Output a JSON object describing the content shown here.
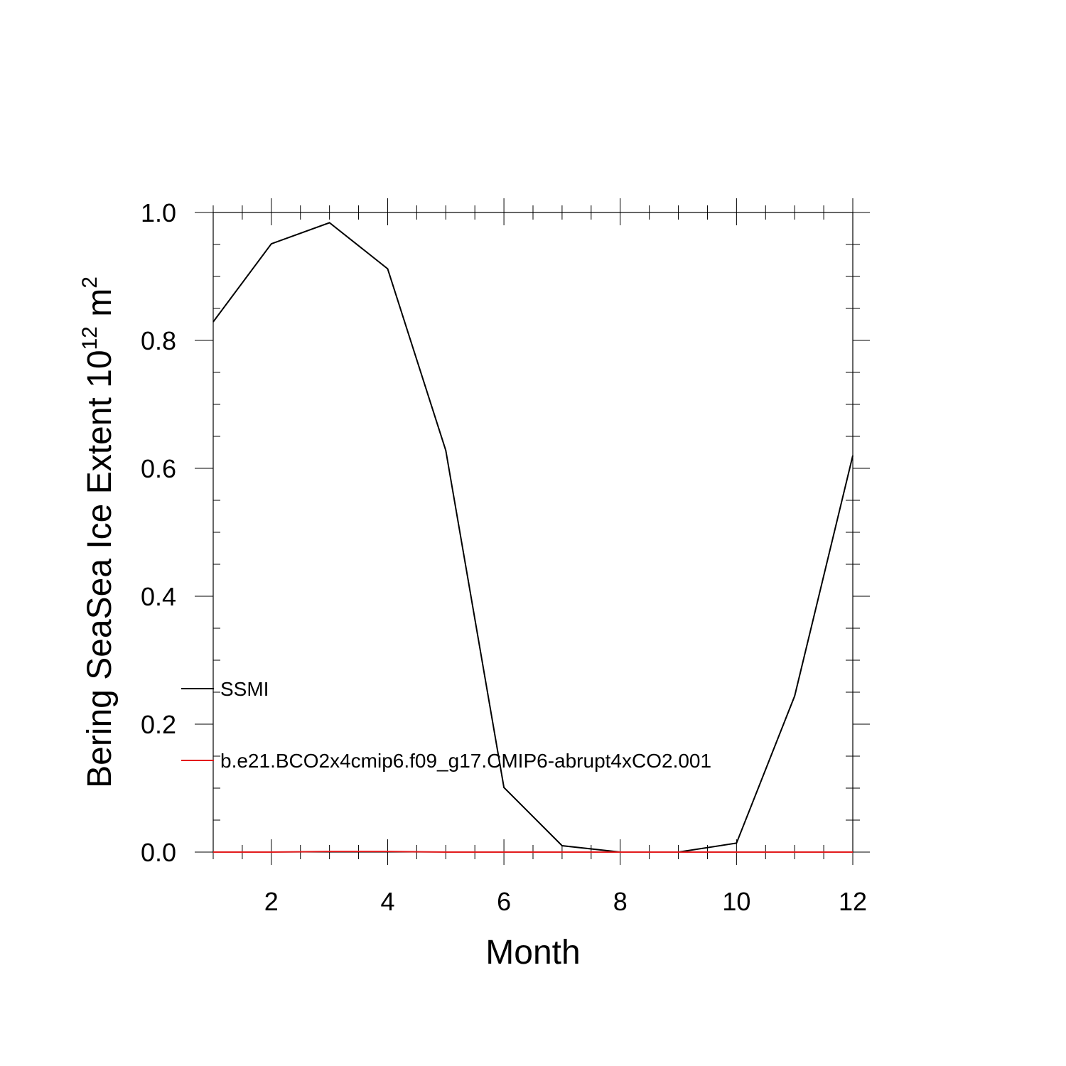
{
  "chart_data": {
    "type": "line",
    "title": "",
    "xlabel": "Month",
    "ylabel": {
      "text": "Bering SeaSea Ice Extent 10",
      "superscript": "12",
      "unit": " m",
      "unit_superscript": "2"
    },
    "xlim": [
      1,
      12
    ],
    "ylim": [
      0.0,
      1.0
    ],
    "xticks": [
      "2",
      "4",
      "6",
      "8",
      "10",
      "12"
    ],
    "xtick_values": [
      2,
      4,
      6,
      8,
      10,
      12
    ],
    "yticks": [
      "0.0",
      "0.2",
      "0.4",
      "0.6",
      "0.8",
      "1.0"
    ],
    "ytick_values": [
      0.0,
      0.2,
      0.4,
      0.6,
      0.8,
      1.0
    ],
    "legend_position": "left-lower, inside plot",
    "grid": false,
    "x": [
      1,
      2,
      3,
      4,
      5,
      6,
      7,
      8,
      9,
      10,
      11,
      12
    ],
    "series": [
      {
        "name": "SSMI",
        "color": "#000000",
        "values": [
          0.829,
          0.951,
          0.984,
          0.912,
          0.628,
          0.101,
          0.01,
          0.0,
          0.0,
          0.014,
          0.244,
          0.62
        ]
      },
      {
        "name": "b.e21.BCO2x4cmip6.f09_g17.CMIP6-abrupt4xCO2.001",
        "color": "#e31a1c",
        "values": [
          0.0,
          0.0,
          0.001,
          0.001,
          0.0,
          0.0,
          0.0,
          0.0,
          0.0,
          0.0,
          0.0,
          0.0
        ]
      }
    ]
  }
}
